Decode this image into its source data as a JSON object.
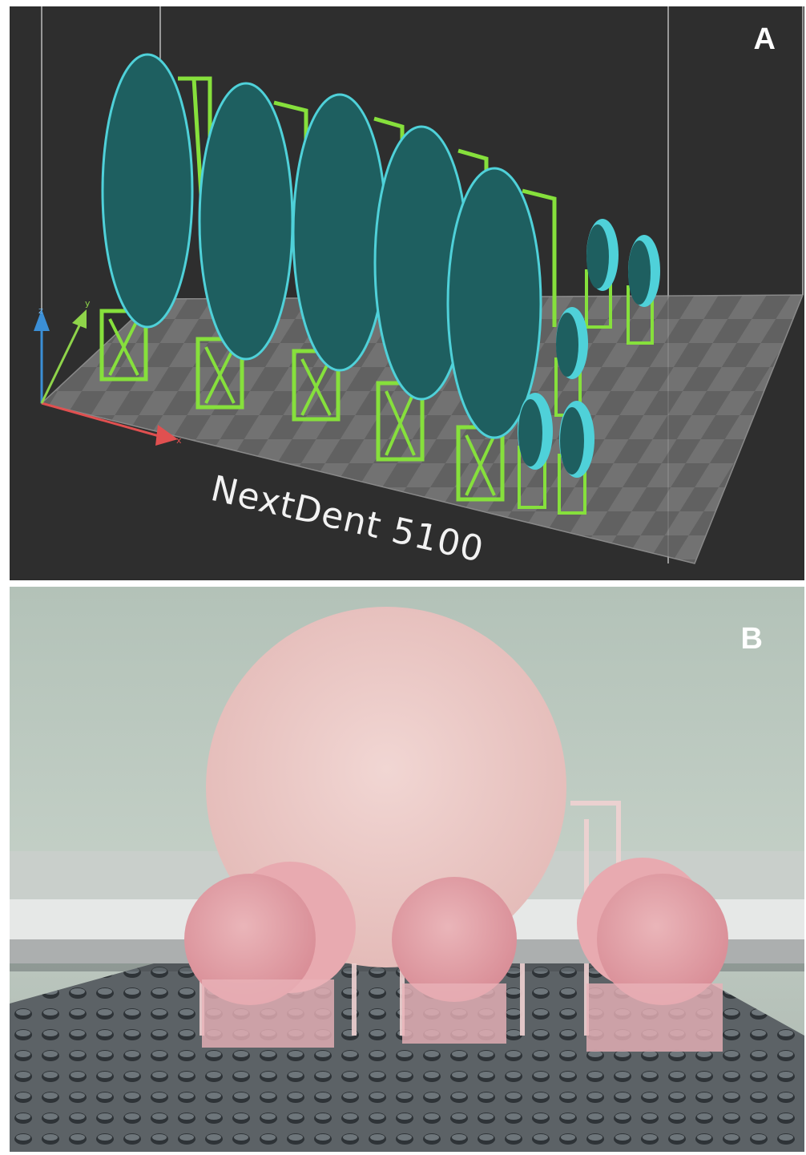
{
  "panel_a": {
    "letter": "A",
    "printer_name": "NextDent 5100",
    "axis_labels": {
      "x": "x",
      "y": "y",
      "z": "z"
    },
    "colors": {
      "background": "#2e2e2e",
      "disc": "#1e5f60",
      "disc_edge": "#4fd1d9",
      "support": "#86e03c"
    }
  },
  "panel_b": {
    "letter": "B",
    "colors": {
      "wall": "#b9c7bd",
      "large_disc": "#ecc9c6",
      "small_disc": "#e5a7ad",
      "tray": "#5a5f63"
    }
  }
}
